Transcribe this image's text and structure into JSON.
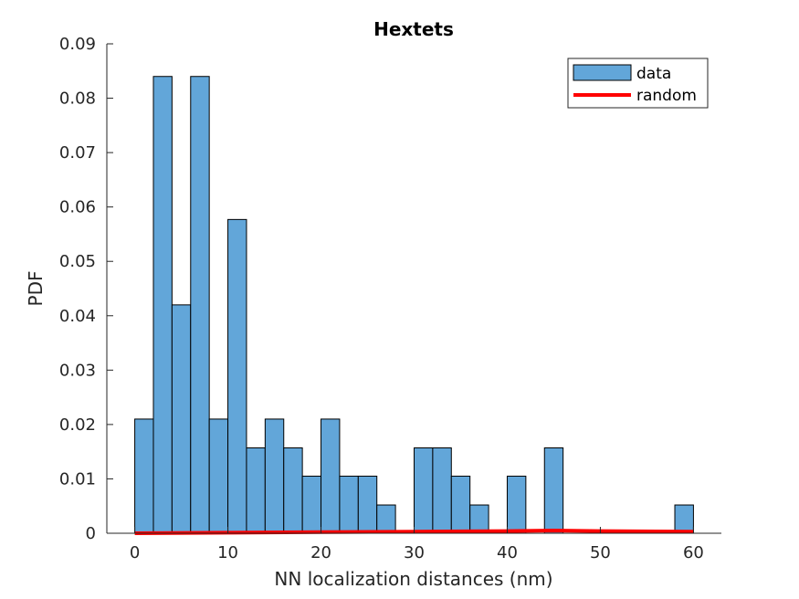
{
  "chart_data": {
    "type": "bar",
    "title": "Hextets",
    "xlabel": "NN localization distances (nm)",
    "ylabel": "PDF",
    "xlim": [
      -3,
      63
    ],
    "ylim": [
      0,
      0.09
    ],
    "xticks": [
      0,
      10,
      20,
      30,
      40,
      50,
      60
    ],
    "yticks": [
      0,
      0.01,
      0.02,
      0.03,
      0.04,
      0.05,
      0.06,
      0.07,
      0.08,
      0.09
    ],
    "ytick_labels": [
      "0",
      "0.01",
      "0.02",
      "0.03",
      "0.04",
      "0.05",
      "0.06",
      "0.07",
      "0.08",
      "0.09"
    ],
    "grid": false,
    "legend_position": "top-right",
    "bin_edges": [
      0,
      2,
      4,
      6,
      8,
      10,
      12,
      14,
      16,
      18,
      20,
      22,
      24,
      26,
      28,
      30,
      32,
      34,
      36,
      38,
      40,
      42,
      44,
      46,
      48,
      50,
      52,
      54,
      56,
      58,
      60
    ],
    "series": [
      {
        "name": "data",
        "kind": "histogram",
        "color": "#62a6d9",
        "edge_color": "#000000",
        "values": [
          0.021,
          0.084,
          0.042,
          0.084,
          0.021,
          0.0577,
          0.0157,
          0.021,
          0.0157,
          0.0105,
          0.021,
          0.0105,
          0.0105,
          0.0052,
          0,
          0.0157,
          0.0157,
          0.0105,
          0.0052,
          0,
          0.0105,
          0,
          0.0157,
          0,
          0,
          0,
          0,
          0,
          0,
          0.0052
        ]
      },
      {
        "name": "random",
        "kind": "line",
        "color": "#ff0000",
        "x": [
          0,
          10,
          20,
          30,
          40,
          45,
          50,
          60
        ],
        "y": [
          0,
          0.0001,
          0.0002,
          0.0003,
          0.0004,
          0.0005,
          0.0004,
          0.0003
        ]
      }
    ]
  }
}
